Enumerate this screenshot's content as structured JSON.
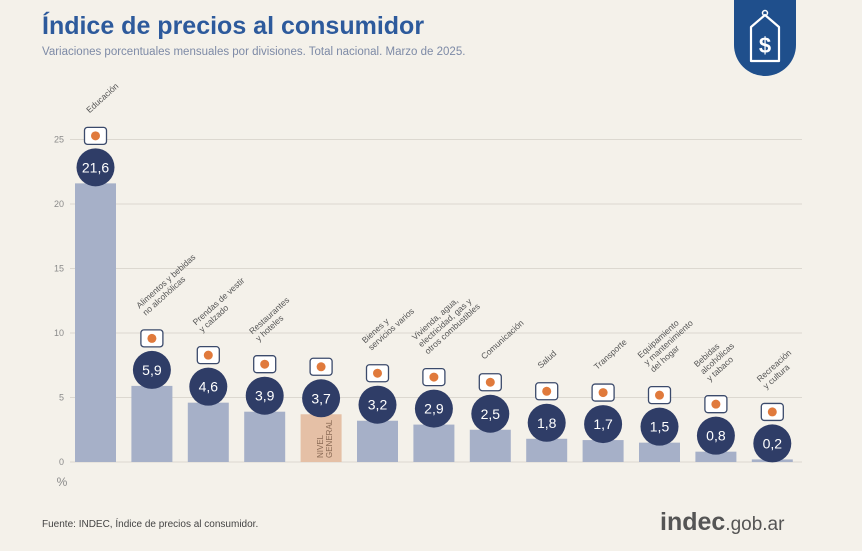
{
  "header": {
    "title": "Índice de precios al consumidor",
    "subtitle": "Variaciones porcentuales mensuales por divisiones. Total nacional. Marzo de 2025."
  },
  "badge": {
    "icon": "price-tag-dollar-icon"
  },
  "chart_data": {
    "type": "bar",
    "ylim": [
      0,
      25
    ],
    "yticks": [
      0,
      5,
      10,
      15,
      20,
      25
    ],
    "ylabel": "%",
    "grid": true,
    "categories": [
      {
        "name": [
          "Educación"
        ],
        "value": 21.6,
        "label": "21,6",
        "icon": "education-books-icon"
      },
      {
        "name": [
          "Alimentos y bebidas",
          "no alcohólicas"
        ],
        "value": 5.9,
        "label": "5,9",
        "icon": "food-bowl-icon"
      },
      {
        "name": [
          "Prendas de vestir",
          "y calzado"
        ],
        "value": 4.6,
        "label": "4,6",
        "icon": "clothing-shoe-icon"
      },
      {
        "name": [
          "Restaurantes",
          "y hoteles"
        ],
        "value": 3.9,
        "label": "3,9",
        "icon": "cutlery-plate-icon"
      },
      {
        "name": [],
        "value": 3.7,
        "label": "3,7",
        "icon": "general-level-icon",
        "bar_text": [
          "NIVEL",
          "GENERAL"
        ],
        "highlight": true
      },
      {
        "name": [
          "Bienes y",
          "servicios varios"
        ],
        "value": 3.2,
        "label": "3,2",
        "icon": "comb-scissors-icon"
      },
      {
        "name": [
          "Vivienda, agua,",
          "electricidad, gas y",
          "otros combustibles"
        ],
        "value": 2.9,
        "label": "2,9",
        "icon": "lightbulb-icon"
      },
      {
        "name": [
          "Comunicación"
        ],
        "value": 2.5,
        "label": "2,5",
        "icon": "mobile-phone-icon"
      },
      {
        "name": [
          "Salud"
        ],
        "value": 1.8,
        "label": "1,8",
        "icon": "health-cross-icon"
      },
      {
        "name": [
          "Transporte"
        ],
        "value": 1.7,
        "label": "1,7",
        "icon": "bus-car-icon"
      },
      {
        "name": [
          "Equipamiento",
          "y mantenimiento",
          "del hogar"
        ],
        "value": 1.5,
        "label": "1,5",
        "icon": "home-appliance-icon"
      },
      {
        "name": [
          "Bebidas",
          "alcohólicas",
          "y tabaco"
        ],
        "value": 0.8,
        "label": "0,8",
        "icon": "bottle-tobacco-icon"
      },
      {
        "name": [
          "Recreación",
          "y cultura"
        ],
        "value": 0.2,
        "label": "0,2",
        "icon": "recreation-umbrella-icon"
      }
    ],
    "colors": {
      "bar": "#a6b0c8",
      "highlight": "#e5c0a6",
      "value_circle": "#2f3d67",
      "grid": "#dcd8d0",
      "axis_text": "#8a8a8a",
      "label_text": "#555555"
    }
  },
  "footer": {
    "source": "Fuente: INDEC, Índice de precios al consumidor.",
    "brand_main": "indec",
    "brand_domain": ".gob.ar"
  }
}
